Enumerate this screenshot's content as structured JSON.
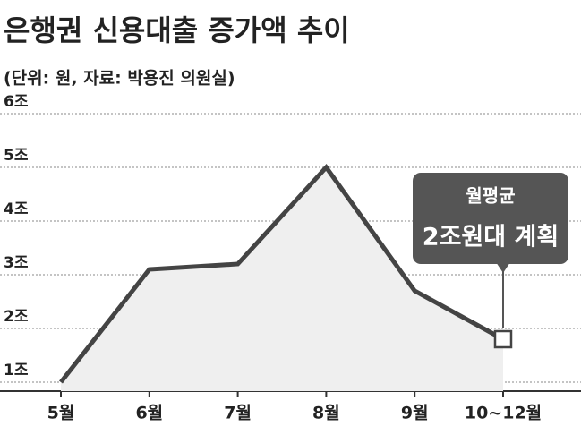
{
  "chart_data": {
    "type": "line",
    "title": "은행권 신용대출 증가액 추이",
    "subtitle": "(단위: 원, 자료: 박용진 의원실)",
    "categories": [
      "5월",
      "6월",
      "7월",
      "8월",
      "9월",
      "10~12월"
    ],
    "values": [
      1.0,
      3.1,
      3.2,
      5.0,
      2.7,
      1.8
    ],
    "color": "#444444",
    "ylim": [
      1,
      6
    ],
    "yticks": [
      {
        "value": 1,
        "label": "1조"
      },
      {
        "value": 2,
        "label": "2조"
      },
      {
        "value": 3,
        "label": "3조"
      },
      {
        "value": 4,
        "label": "4조"
      },
      {
        "value": 5,
        "label": "5조"
      },
      {
        "value": 6,
        "label": "6조"
      }
    ],
    "grid": true,
    "annotation": [
      "월평균",
      "2조원대 계획"
    ]
  }
}
